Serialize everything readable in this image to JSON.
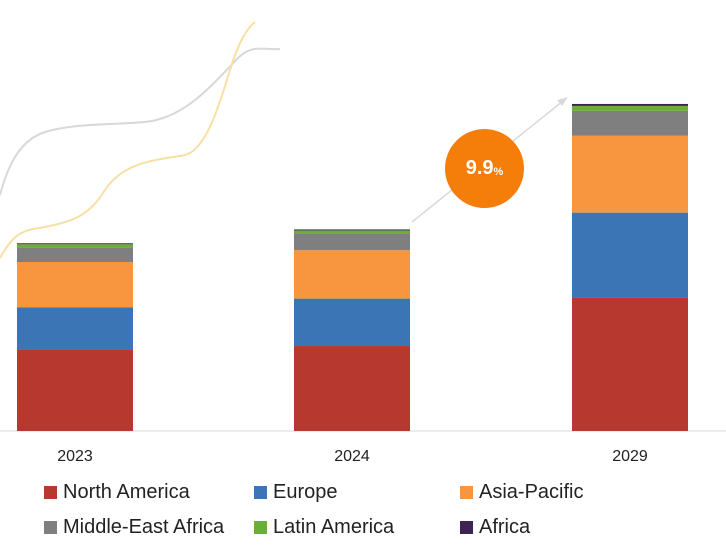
{
  "chart_data": {
    "type": "bar",
    "stacked": true,
    "categories": [
      "2023",
      "2024",
      "2029"
    ],
    "series": [
      {
        "name": "North America",
        "color": "#b7382f",
        "values": [
          82,
          86,
          135
        ]
      },
      {
        "name": "Europe",
        "color": "#3b75b5",
        "values": [
          43,
          48,
          86
        ]
      },
      {
        "name": "Asia-Pacific",
        "color": "#f7963f",
        "values": [
          46,
          49,
          78
        ]
      },
      {
        "name": "Middle-East Africa",
        "color": "#7f7f7f",
        "values": [
          15,
          17,
          25
        ]
      },
      {
        "name": "Latin America",
        "color": "#6aae3a",
        "values": [
          3,
          3,
          5
        ]
      },
      {
        "name": "Africa",
        "color": "#3e2456",
        "values": [
          1,
          1,
          2
        ]
      }
    ],
    "legend_placement": "bottom",
    "grid": false,
    "ylim": [
      0,
      335
    ]
  },
  "cagr": {
    "value": "9.9",
    "unit": "%"
  }
}
